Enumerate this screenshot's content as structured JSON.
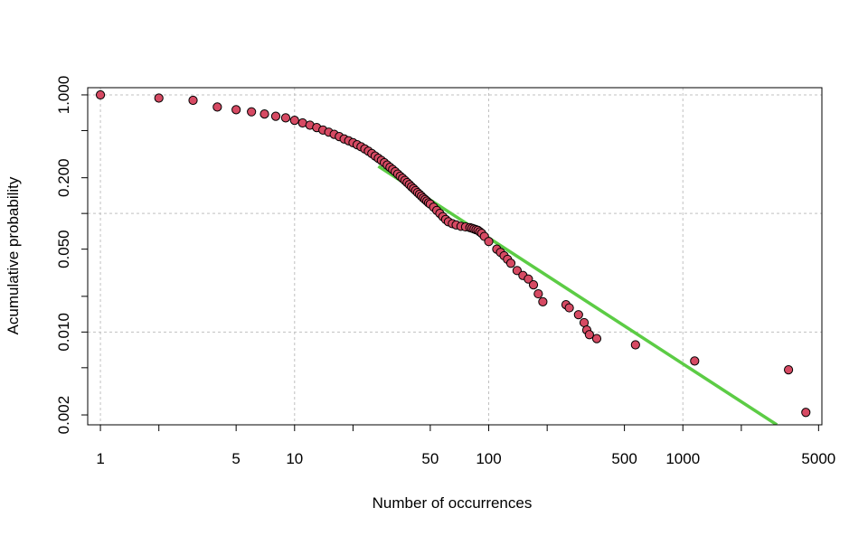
{
  "chart_data": {
    "type": "scatter",
    "title": "",
    "xlabel": "Number of occurrences",
    "ylabel": "Acumulative probability",
    "x_scale": "log",
    "y_scale": "log",
    "xlim": [
      0.86,
      5200
    ],
    "ylim": [
      0.00165,
      1.15
    ],
    "x_ticks": [
      {
        "value": 1,
        "label": "1"
      },
      {
        "value": 5,
        "label": "5"
      },
      {
        "value": 10,
        "label": "10"
      },
      {
        "value": 50,
        "label": "50"
      },
      {
        "value": 100,
        "label": "100"
      },
      {
        "value": 500,
        "label": "500"
      },
      {
        "value": 1000,
        "label": "1000"
      },
      {
        "value": 5000,
        "label": "5000"
      }
    ],
    "x_minor_ticks": [
      2,
      20,
      200,
      2000
    ],
    "y_ticks": [
      {
        "value": 0.002,
        "label": "0.002"
      },
      {
        "value": 0.005,
        "label": ""
      },
      {
        "value": 0.01,
        "label": "0.010"
      },
      {
        "value": 0.02,
        "label": ""
      },
      {
        "value": 0.05,
        "label": "0.050"
      },
      {
        "value": 0.1,
        "label": ""
      },
      {
        "value": 0.2,
        "label": "0.200"
      },
      {
        "value": 0.5,
        "label": ""
      },
      {
        "value": 1.0,
        "label": "1.000"
      }
    ],
    "grid": true,
    "grid_x": [
      1,
      10,
      100,
      1000
    ],
    "grid_y": [
      0.01,
      0.1,
      1.0
    ],
    "point_color": "#d64a63",
    "point_edge_color": "#000000",
    "fit_line_color": "#5ccc45",
    "fit_line": {
      "x": [
        27,
        3050
      ],
      "y": [
        0.25,
        0.00165
      ]
    },
    "series": [
      {
        "x": [
          1,
          2,
          3,
          4,
          5,
          6,
          7,
          8,
          9,
          10,
          11,
          12,
          13,
          14,
          15,
          16,
          17,
          18,
          19,
          20,
          21,
          22,
          23,
          24,
          25,
          26,
          27,
          28,
          29,
          30,
          31,
          32,
          33,
          34,
          35,
          36,
          37,
          38,
          39,
          40,
          41,
          42,
          43,
          44,
          45,
          46,
          47,
          48,
          49,
          50,
          52,
          54,
          56,
          58,
          60,
          62,
          65,
          68,
          72,
          76,
          80,
          82,
          84,
          86,
          88,
          90,
          92,
          95,
          100,
          110,
          115,
          120,
          125,
          130,
          140,
          150,
          160,
          170,
          180,
          190,
          250,
          260,
          290,
          310,
          320,
          330,
          360,
          570,
          1150,
          3500,
          4300
        ],
        "y": [
          1.0,
          0.94,
          0.9,
          0.79,
          0.75,
          0.72,
          0.69,
          0.66,
          0.64,
          0.61,
          0.58,
          0.555,
          0.53,
          0.505,
          0.485,
          0.465,
          0.445,
          0.425,
          0.41,
          0.395,
          0.38,
          0.365,
          0.35,
          0.335,
          0.32,
          0.305,
          0.292,
          0.28,
          0.268,
          0.256,
          0.245,
          0.235,
          0.225,
          0.215,
          0.206,
          0.198,
          0.19,
          0.182,
          0.175,
          0.168,
          0.162,
          0.156,
          0.15,
          0.145,
          0.14,
          0.135,
          0.131,
          0.127,
          0.123,
          0.12,
          0.113,
          0.106,
          0.1,
          0.094,
          0.089,
          0.085,
          0.082,
          0.08,
          0.078,
          0.077,
          0.076,
          0.075,
          0.074,
          0.073,
          0.072,
          0.07,
          0.068,
          0.064,
          0.058,
          0.05,
          0.047,
          0.044,
          0.041,
          0.038,
          0.033,
          0.03,
          0.028,
          0.025,
          0.021,
          0.018,
          0.017,
          0.016,
          0.014,
          0.012,
          0.0104,
          0.0095,
          0.0088,
          0.0078,
          0.0057,
          0.0048,
          0.0021
        ]
      }
    ]
  }
}
